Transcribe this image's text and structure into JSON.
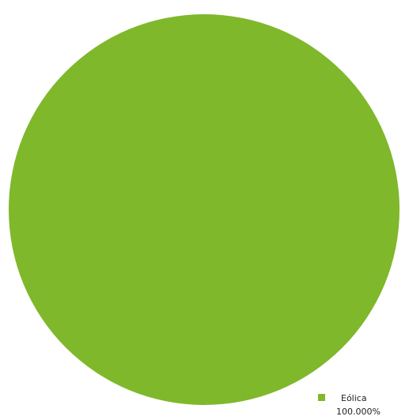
{
  "chart_data": {
    "type": "pie",
    "categories": [
      "Eólica"
    ],
    "values": [
      100.0
    ],
    "percent_labels": [
      "100.000%"
    ],
    "colors": [
      "#7FB82B"
    ],
    "legend_position": "bottom-right"
  }
}
